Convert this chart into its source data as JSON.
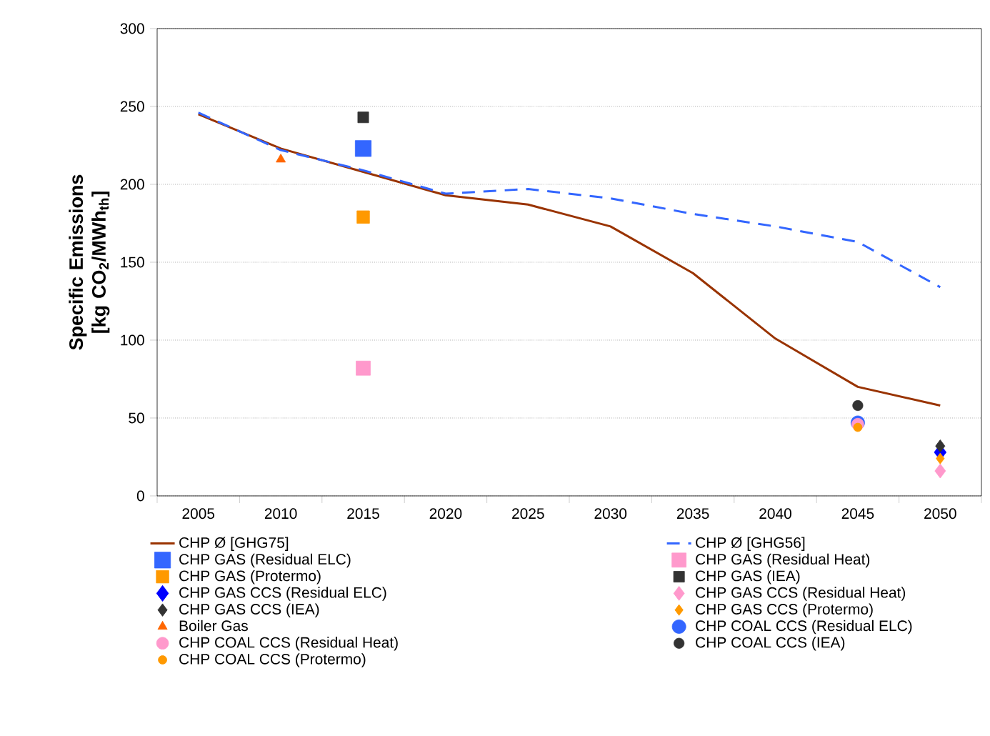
{
  "chart_data": {
    "type": "line",
    "ylabel": "Specific Emissions [kg CO$_{2}$/MWh$_{th}$]",
    "categories": [
      "2005",
      "2010",
      "2015",
      "2020",
      "2025",
      "2030",
      "2035",
      "2040",
      "2045",
      "2050"
    ],
    "ylim": [
      0,
      300
    ],
    "yticks": [
      0,
      50,
      100,
      150,
      200,
      250,
      300
    ],
    "grid": "y",
    "legend": "bottom",
    "series": [
      {
        "name": "CHP Ø [GHG75]",
        "color": "#993300",
        "line_style": "solid",
        "marker": "none",
        "values": [
          245,
          223,
          208,
          193,
          187,
          173,
          143,
          101,
          70,
          58
        ]
      },
      {
        "name": "CHP Ø [GHG56]",
        "color": "#3366ff",
        "line_style": "dashed",
        "marker": "none",
        "values": [
          246,
          222,
          209,
          194,
          197,
          191,
          181,
          173,
          163,
          134
        ]
      },
      {
        "name": "CHP GAS (Residual ELC)",
        "type": "scatter",
        "color": "#3366ff",
        "marker": "square",
        "values": [
          null,
          null,
          223,
          null,
          null,
          null,
          null,
          null,
          null,
          null
        ]
      },
      {
        "name": "CHP GAS (Residual Heat)",
        "type": "scatter",
        "color": "#ff99cc",
        "marker": "square",
        "values": [
          null,
          null,
          82,
          null,
          null,
          null,
          null,
          null,
          null,
          null
        ]
      },
      {
        "name": "CHP GAS (Protermo)",
        "type": "scatter",
        "color": "#ff9900",
        "marker": "square",
        "values": [
          null,
          null,
          179,
          null,
          null,
          null,
          null,
          null,
          null,
          null
        ]
      },
      {
        "name": "CHP GAS (IEA)",
        "type": "scatter",
        "color": "#333333",
        "marker": "square",
        "values": [
          null,
          null,
          243,
          null,
          null,
          null,
          null,
          null,
          null,
          null
        ]
      },
      {
        "name": "CHP GAS CCS (Residual ELC)",
        "type": "scatter",
        "color": "#0000ff",
        "marker": "diamond",
        "values": [
          null,
          null,
          null,
          null,
          null,
          null,
          null,
          null,
          null,
          28
        ]
      },
      {
        "name": "CHP GAS CCS (Residual Heat)",
        "type": "scatter",
        "color": "#ff99cc",
        "marker": "diamond",
        "values": [
          null,
          null,
          null,
          null,
          null,
          null,
          null,
          null,
          null,
          16
        ]
      },
      {
        "name": "CHP GAS CCS (IEA)",
        "type": "scatter",
        "color": "#333333",
        "marker": "diamond",
        "values": [
          null,
          null,
          null,
          null,
          null,
          null,
          null,
          null,
          null,
          32
        ]
      },
      {
        "name": "CHP GAS CCS (Protermo)",
        "type": "scatter",
        "color": "#ff9900",
        "marker": "diamond",
        "values": [
          null,
          null,
          null,
          null,
          null,
          null,
          null,
          null,
          null,
          24
        ]
      },
      {
        "name": "Boiler Gas",
        "type": "scatter",
        "color": "#ff6600",
        "marker": "triangle",
        "values": [
          null,
          216,
          null,
          null,
          null,
          null,
          null,
          null,
          null,
          null
        ]
      },
      {
        "name": "CHP COAL CCS (Residual ELC)",
        "type": "scatter",
        "color": "#3366ff",
        "marker": "circle",
        "values": [
          null,
          null,
          null,
          null,
          null,
          null,
          null,
          null,
          47,
          null
        ]
      },
      {
        "name": "CHP COAL CCS (Residual Heat)",
        "type": "scatter",
        "color": "#ff99cc",
        "marker": "circle",
        "values": [
          null,
          null,
          null,
          null,
          null,
          null,
          null,
          null,
          46,
          null
        ]
      },
      {
        "name": "CHP COAL CCS (IEA)",
        "type": "scatter",
        "color": "#333333",
        "marker": "circle",
        "values": [
          null,
          null,
          null,
          null,
          null,
          null,
          null,
          null,
          58,
          null
        ]
      },
      {
        "name": "CHP COAL CCS (Protermo)",
        "type": "scatter",
        "color": "#ff9900",
        "marker": "circle",
        "values": [
          null,
          null,
          null,
          null,
          null,
          null,
          null,
          null,
          44,
          null
        ]
      }
    ]
  }
}
